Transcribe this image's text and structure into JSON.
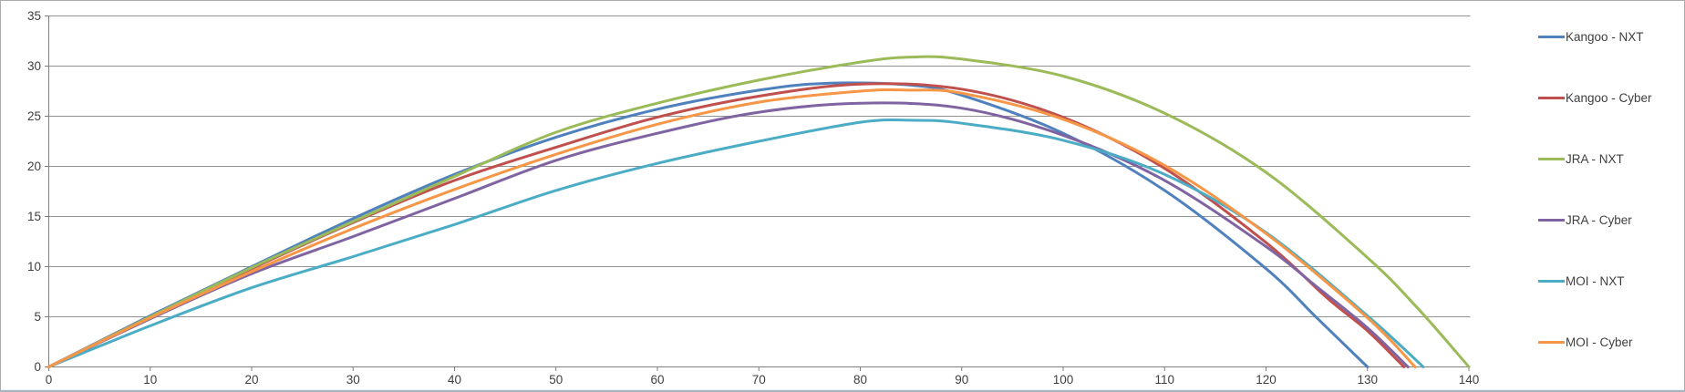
{
  "chart_data": {
    "type": "line",
    "title": "",
    "xlabel": "",
    "ylabel": "",
    "xlim": [
      0,
      140
    ],
    "ylim": [
      0,
      35
    ],
    "x_ticks": [
      0,
      10,
      20,
      30,
      40,
      50,
      60,
      70,
      80,
      90,
      100,
      110,
      120,
      130,
      140
    ],
    "y_ticks": [
      0,
      5,
      10,
      15,
      20,
      25,
      30,
      35
    ],
    "grid": "horizontal",
    "legend_position": "right",
    "series": [
      {
        "name": "Kangoo - NXT",
        "color": "#4F81BD",
        "points": [
          [
            0,
            0
          ],
          [
            10,
            5.1
          ],
          [
            20,
            10.0
          ],
          [
            30,
            14.8
          ],
          [
            40,
            19.2
          ],
          [
            50,
            22.9
          ],
          [
            60,
            25.7
          ],
          [
            70,
            27.6
          ],
          [
            77,
            28.3
          ],
          [
            85,
            28.1
          ],
          [
            90,
            27.1
          ],
          [
            100,
            23.3
          ],
          [
            110,
            17.6
          ],
          [
            120,
            9.8
          ],
          [
            125,
            4.9
          ],
          [
            130,
            0
          ]
        ]
      },
      {
        "name": "Kangoo - Cyber",
        "color": "#C0504D",
        "points": [
          [
            0,
            0
          ],
          [
            10,
            5.0
          ],
          [
            20,
            9.8
          ],
          [
            30,
            14.4
          ],
          [
            40,
            18.6
          ],
          [
            50,
            21.9
          ],
          [
            60,
            24.9
          ],
          [
            70,
            27.0
          ],
          [
            80,
            28.2
          ],
          [
            90,
            27.7
          ],
          [
            100,
            24.9
          ],
          [
            110,
            19.8
          ],
          [
            120,
            12.4
          ],
          [
            126,
            6.9
          ],
          [
            130,
            3.6
          ],
          [
            133.6,
            0
          ]
        ]
      },
      {
        "name": "JRA - NXT",
        "color": "#9BBB59",
        "points": [
          [
            0,
            0
          ],
          [
            10,
            5.0
          ],
          [
            20,
            9.9
          ],
          [
            30,
            14.5
          ],
          [
            40,
            19.0
          ],
          [
            50,
            23.4
          ],
          [
            60,
            26.3
          ],
          [
            70,
            28.6
          ],
          [
            80,
            30.4
          ],
          [
            85,
            30.9
          ],
          [
            90,
            30.7
          ],
          [
            100,
            29.0
          ],
          [
            110,
            25.3
          ],
          [
            120,
            19.4
          ],
          [
            130,
            10.9
          ],
          [
            135,
            5.8
          ],
          [
            140,
            0
          ]
        ]
      },
      {
        "name": "JRA - Cyber",
        "color": "#8064A2",
        "points": [
          [
            0,
            0
          ],
          [
            10,
            4.8
          ],
          [
            20,
            9.3
          ],
          [
            30,
            13.0
          ],
          [
            40,
            16.8
          ],
          [
            50,
            20.6
          ],
          [
            60,
            23.3
          ],
          [
            70,
            25.4
          ],
          [
            80,
            26.3
          ],
          [
            90,
            25.8
          ],
          [
            100,
            23.1
          ],
          [
            110,
            18.6
          ],
          [
            120,
            12.0
          ],
          [
            125,
            8.0
          ],
          [
            130,
            3.9
          ],
          [
            134,
            0
          ]
        ]
      },
      {
        "name": "MOI - NXT",
        "color": "#4BACC6",
        "points": [
          [
            0,
            0
          ],
          [
            10,
            4.1
          ],
          [
            20,
            7.9
          ],
          [
            30,
            11.0
          ],
          [
            40,
            14.2
          ],
          [
            50,
            17.6
          ],
          [
            60,
            20.3
          ],
          [
            70,
            22.5
          ],
          [
            80,
            24.4
          ],
          [
            85,
            24.6
          ],
          [
            90,
            24.3
          ],
          [
            100,
            22.6
          ],
          [
            110,
            19.2
          ],
          [
            120,
            13.4
          ],
          [
            130,
            5.1
          ],
          [
            135.5,
            0
          ]
        ]
      },
      {
        "name": "MOI - Cyber",
        "color": "#F79646",
        "points": [
          [
            0,
            0
          ],
          [
            10,
            4.9
          ],
          [
            20,
            9.5
          ],
          [
            30,
            13.8
          ],
          [
            40,
            17.7
          ],
          [
            50,
            21.2
          ],
          [
            60,
            24.2
          ],
          [
            70,
            26.4
          ],
          [
            80,
            27.5
          ],
          [
            85,
            27.6
          ],
          [
            90,
            27.3
          ],
          [
            100,
            24.7
          ],
          [
            110,
            20.1
          ],
          [
            120,
            13.3
          ],
          [
            130,
            4.9
          ],
          [
            134.7,
            0
          ]
        ]
      }
    ]
  },
  "colors": {
    "background": "#FFFFFF",
    "frame_border": "#ABABAB",
    "bottom_sheet_line": "#A9BBCB",
    "axis_line": "#7F7F7F",
    "gridline": "#929292",
    "tick_label": "#3F3F3F",
    "legend_label": "#3F3F3F"
  },
  "line_width": 3
}
